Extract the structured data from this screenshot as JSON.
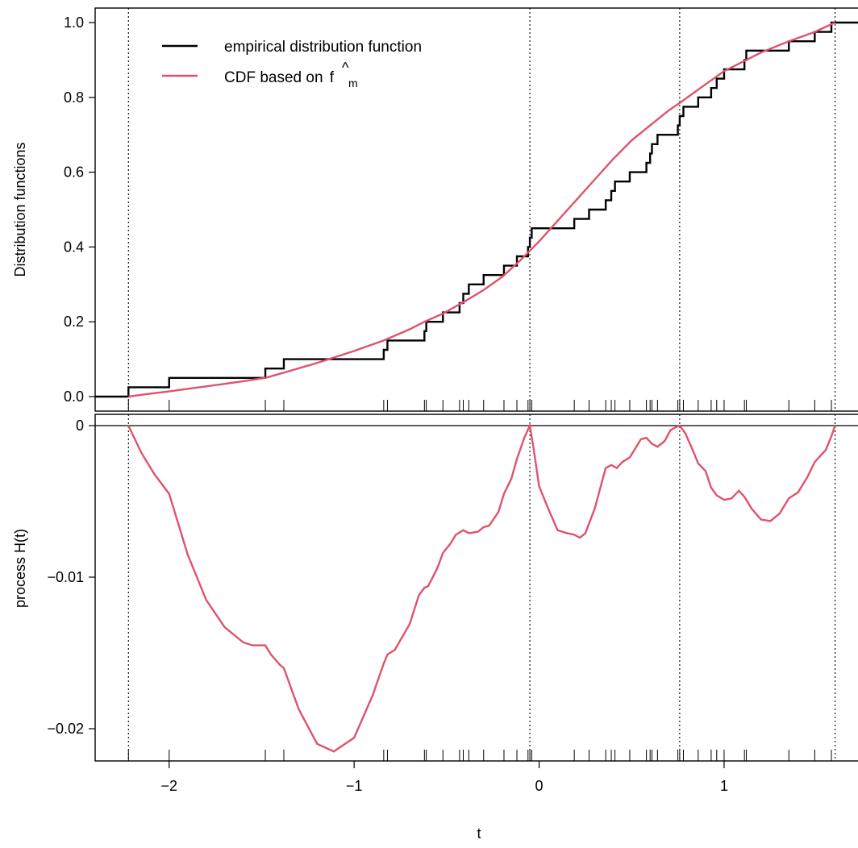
{
  "chart_data": [
    {
      "type": "line",
      "panel": "top",
      "ylabel": "Distribution functions",
      "xlim": [
        -2.4,
        1.75
      ],
      "ylim": [
        0.0,
        1.0
      ],
      "yticks": [
        0.0,
        0.2,
        0.4,
        0.6,
        0.8,
        1.0
      ],
      "ytick_labels": [
        "0.0",
        "0.2",
        "0.4",
        "0.6",
        "0.8",
        "1.0"
      ],
      "grid": false,
      "legend_position": "top-left",
      "legend": [
        {
          "label": "empirical distribution function",
          "color": "#000000"
        },
        {
          "label_main": "CDF based on ",
          "label_f": "f",
          "label_hat": "^",
          "label_sub": "m",
          "color": "#DF536B"
        }
      ],
      "vlines": [
        -2.22,
        -0.05,
        0.76,
        1.6
      ],
      "rug": [
        -2.22,
        -2.0,
        -1.48,
        -1.38,
        -0.84,
        -0.82,
        -0.62,
        -0.61,
        -0.52,
        -0.43,
        -0.41,
        -0.38,
        -0.3,
        -0.19,
        -0.12,
        -0.06,
        -0.05,
        -0.04,
        0.19,
        0.27,
        0.36,
        0.39,
        0.41,
        0.49,
        0.58,
        0.6,
        0.61,
        0.64,
        0.75,
        0.76,
        0.78,
        0.86,
        0.93,
        0.96,
        1.0,
        1.11,
        1.12,
        1.35,
        1.49,
        1.58
      ],
      "series": [
        {
          "name": "empirical distribution function",
          "kind": "step",
          "color": "#000000"
        },
        {
          "name": "CDF based on f^m",
          "kind": "line",
          "color": "#DF536B",
          "x": [
            -2.22,
            -2.1,
            -2.0,
            -1.85,
            -1.7,
            -1.6,
            -1.48,
            -1.38,
            -1.2,
            -1.0,
            -0.84,
            -0.7,
            -0.62,
            -0.52,
            -0.4,
            -0.3,
            -0.2,
            -0.1,
            -0.05,
            0.0,
            0.1,
            0.2,
            0.3,
            0.4,
            0.5,
            0.6,
            0.7,
            0.76,
            0.9,
            1.0,
            1.1,
            1.2,
            1.35,
            1.49,
            1.6
          ],
          "y": [
            0.0,
            0.008,
            0.014,
            0.024,
            0.034,
            0.041,
            0.05,
            0.064,
            0.09,
            0.122,
            0.15,
            0.18,
            0.2,
            0.222,
            0.255,
            0.285,
            0.32,
            0.365,
            0.39,
            0.415,
            0.47,
            0.525,
            0.58,
            0.635,
            0.685,
            0.725,
            0.765,
            0.785,
            0.835,
            0.87,
            0.895,
            0.92,
            0.95,
            0.975,
            1.0
          ]
        }
      ]
    },
    {
      "type": "line",
      "panel": "bottom",
      "xlabel": "t",
      "ylabel": "process H(t)",
      "xlim": [
        -2.4,
        1.75
      ],
      "ylim": [
        -0.022,
        0.0005
      ],
      "xticks": [
        -2,
        -1,
        0,
        1
      ],
      "xtick_labels": [
        "−2",
        "−1",
        "0",
        "1"
      ],
      "yticks": [
        0,
        -0.01,
        -0.02
      ],
      "ytick_labels": [
        "0",
        "−0.01",
        "−0.02"
      ],
      "grid": false,
      "hline": 0,
      "vlines": [
        -2.22,
        -0.05,
        0.76,
        1.6
      ],
      "series": [
        {
          "name": "H(t)",
          "color": "#DF536B",
          "x": [
            -2.22,
            -2.15,
            -2.08,
            -2.0,
            -1.9,
            -1.8,
            -1.7,
            -1.6,
            -1.55,
            -1.48,
            -1.45,
            -1.4,
            -1.38,
            -1.3,
            -1.2,
            -1.11,
            -1.0,
            -0.9,
            -0.84,
            -0.82,
            -0.78,
            -0.7,
            -0.65,
            -0.62,
            -0.6,
            -0.55,
            -0.52,
            -0.48,
            -0.45,
            -0.41,
            -0.38,
            -0.33,
            -0.3,
            -0.27,
            -0.22,
            -0.19,
            -0.15,
            -0.12,
            -0.08,
            -0.05,
            -0.03,
            0.0,
            0.05,
            0.1,
            0.15,
            0.19,
            0.22,
            0.25,
            0.3,
            0.36,
            0.39,
            0.42,
            0.45,
            0.49,
            0.52,
            0.55,
            0.58,
            0.61,
            0.64,
            0.68,
            0.71,
            0.74,
            0.76,
            0.79,
            0.83,
            0.86,
            0.9,
            0.93,
            0.96,
            1.0,
            1.04,
            1.08,
            1.11,
            1.15,
            1.2,
            1.25,
            1.3,
            1.35,
            1.4,
            1.45,
            1.49,
            1.55,
            1.58,
            1.6
          ],
          "y": [
            0.0,
            -0.0018,
            -0.0032,
            -0.0045,
            -0.0085,
            -0.0115,
            -0.0133,
            -0.0143,
            -0.0145,
            -0.0145,
            -0.0151,
            -0.0158,
            -0.016,
            -0.0187,
            -0.021,
            -0.0215,
            -0.0206,
            -0.0178,
            -0.0157,
            -0.0151,
            -0.0148,
            -0.0131,
            -0.0112,
            -0.0107,
            -0.0106,
            -0.0094,
            -0.0084,
            -0.0078,
            -0.0072,
            -0.0069,
            -0.0071,
            -0.007,
            -0.0067,
            -0.0066,
            -0.0057,
            -0.0045,
            -0.0035,
            -0.0022,
            -0.0008,
            0.0,
            -0.0015,
            -0.004,
            -0.0055,
            -0.0069,
            -0.0071,
            -0.0072,
            -0.0074,
            -0.0071,
            -0.0055,
            -0.0028,
            -0.0026,
            -0.0028,
            -0.0024,
            -0.0021,
            -0.0015,
            -0.0009,
            -0.0008,
            -0.0012,
            -0.0014,
            -0.001,
            -0.0003,
            -0.0001,
            0.0,
            -0.0005,
            -0.0016,
            -0.0025,
            -0.003,
            -0.0041,
            -0.0046,
            -0.0049,
            -0.0048,
            -0.0043,
            -0.0047,
            -0.0055,
            -0.0062,
            -0.0063,
            -0.0058,
            -0.0048,
            -0.0044,
            -0.0034,
            -0.0024,
            -0.0016,
            -0.0007,
            0.0
          ]
        }
      ]
    }
  ]
}
